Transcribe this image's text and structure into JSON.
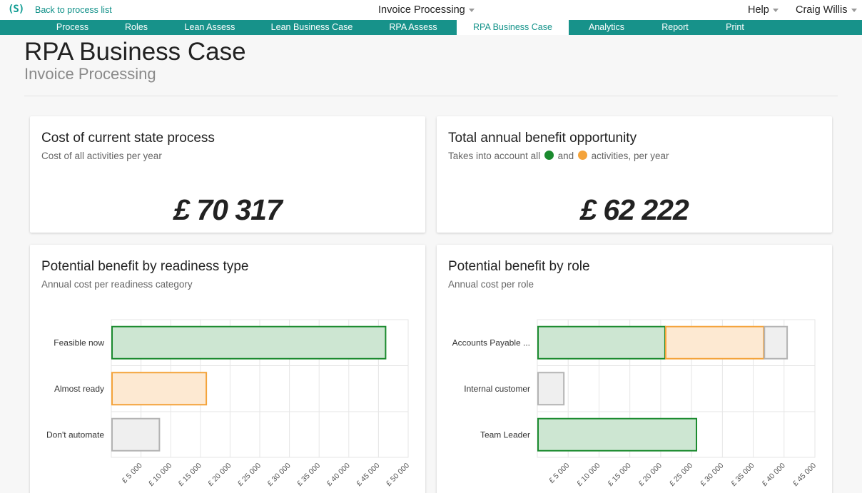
{
  "header": {
    "logo": "(S)",
    "back_link": "Back to process list",
    "process_select": "Invoice Processing",
    "help": "Help",
    "user": "Craig Willis"
  },
  "tabs": [
    {
      "label": "Process",
      "active": false
    },
    {
      "label": "Roles",
      "active": false
    },
    {
      "label": "Lean Assess",
      "active": false
    },
    {
      "label": "Lean Business Case",
      "active": false
    },
    {
      "label": "RPA Assess",
      "active": false
    },
    {
      "label": "RPA Business Case",
      "active": true
    },
    {
      "label": "Analytics",
      "active": false
    },
    {
      "label": "Report",
      "active": false
    },
    {
      "label": "Print",
      "active": false
    }
  ],
  "page": {
    "title": "RPA Business Case",
    "subtitle": "Invoice Processing"
  },
  "cards": {
    "current_cost": {
      "title": "Cost of current state process",
      "subtitle": "Cost of all activities per year",
      "value": "£ 70 317"
    },
    "benefit": {
      "title": "Total annual benefit opportunity",
      "subtitle_pre": "Takes into account all",
      "subtitle_mid": "and",
      "subtitle_post": "activities, per year",
      "value": "£ 62 222"
    },
    "readiness_chart": {
      "title": "Potential benefit by readiness type",
      "subtitle": "Annual cost per readiness category"
    },
    "role_chart": {
      "title": "Potential benefit by role",
      "subtitle": "Annual cost per role"
    }
  },
  "colors": {
    "brand": "#17928a",
    "green": "#1a8a2e",
    "green_fill": "#cde6d2",
    "orange": "#f4a33a",
    "orange_fill": "#fde9d2",
    "grey": "#b3b3b3",
    "grey_fill": "#efefef"
  },
  "chart_data": [
    {
      "type": "bar",
      "orientation": "horizontal",
      "categories": [
        "Feasible now",
        "Almost ready",
        "Don't automate"
      ],
      "series": [
        {
          "values": [
            46200,
            0,
            0
          ],
          "color": "#1a8a2e"
        },
        {
          "values": [
            0,
            16000,
            0
          ],
          "color": "#f4a33a"
        },
        {
          "values": [
            0,
            0,
            8100
          ],
          "color": "#b3b3b3"
        }
      ],
      "xlim": [
        0,
        50000
      ],
      "xticks": [
        5000,
        10000,
        15000,
        20000,
        25000,
        30000,
        35000,
        40000,
        45000,
        50000
      ],
      "tick_labels": [
        "£ 5 000",
        "£ 10 000",
        "£ 15 000",
        "£ 20 000",
        "£ 25 000",
        "£ 30 000",
        "£ 35 000",
        "£ 40 000",
        "£ 45 000",
        "£ 50 000"
      ],
      "stacked": true,
      "grid": true
    },
    {
      "type": "bar",
      "orientation": "horizontal",
      "categories": [
        "Accounts Payable ...",
        "Internal customer",
        "Team Leader"
      ],
      "series": [
        {
          "values": [
            20700,
            0,
            25800
          ],
          "color": "#1a8a2e"
        },
        {
          "values": [
            16000,
            0,
            0
          ],
          "color": "#f4a33a"
        },
        {
          "values": [
            3800,
            4300,
            0
          ],
          "color": "#b3b3b3"
        }
      ],
      "xlim": [
        0,
        45000
      ],
      "xticks": [
        5000,
        10000,
        15000,
        20000,
        25000,
        30000,
        35000,
        40000,
        45000
      ],
      "tick_labels": [
        "£ 5 000",
        "£ 10 000",
        "£ 15 000",
        "£ 20 000",
        "£ 25 000",
        "£ 30 000",
        "£ 35 000",
        "£ 40 000",
        "£ 45 000"
      ],
      "stacked": true,
      "grid": true
    }
  ]
}
